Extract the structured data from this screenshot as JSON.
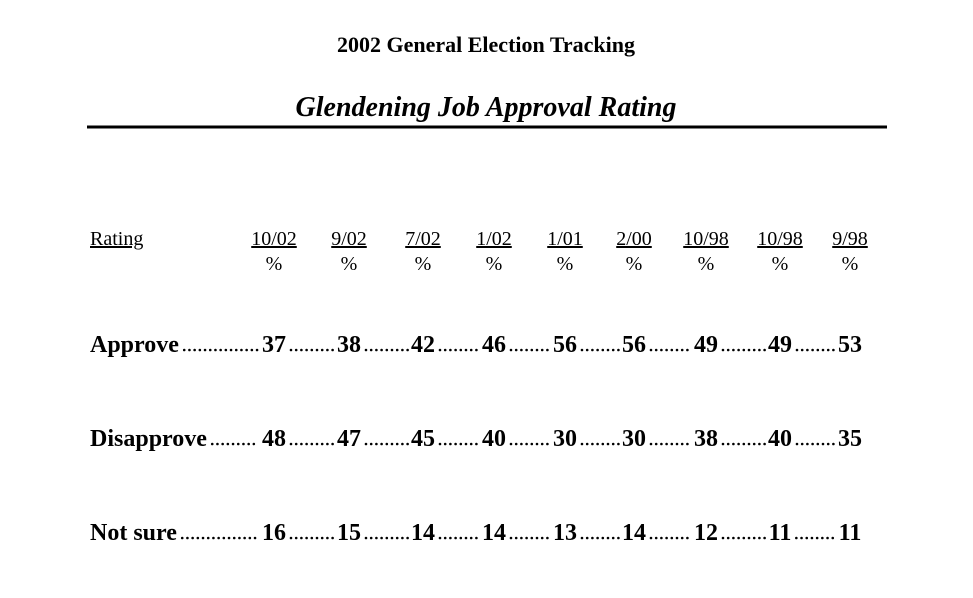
{
  "header": {
    "title": "2002 General Election Tracking",
    "subtitle": "Glendening Job Approval Rating"
  },
  "table": {
    "row_header": "Rating",
    "columns": [
      {
        "label": "10/02",
        "unit": "%"
      },
      {
        "label": "9/02",
        "unit": "%"
      },
      {
        "label": "7/02",
        "unit": "%"
      },
      {
        "label": "1/02",
        "unit": "%"
      },
      {
        "label": "1/01",
        "unit": "%"
      },
      {
        "label": "2/00",
        "unit": "%"
      },
      {
        "label": "10/98",
        "unit": "%"
      },
      {
        "label": "10/98",
        "unit": "%"
      },
      {
        "label": "9/98",
        "unit": "%"
      }
    ],
    "rows": [
      {
        "label": "Approve",
        "values": [
          37,
          38,
          42,
          46,
          56,
          56,
          49,
          49,
          53
        ]
      },
      {
        "label": "Disapprove",
        "values": [
          48,
          47,
          45,
          40,
          30,
          30,
          38,
          40,
          35
        ]
      },
      {
        "label": "Not sure",
        "values": [
          16,
          15,
          14,
          14,
          13,
          14,
          12,
          11,
          11
        ]
      }
    ]
  }
}
